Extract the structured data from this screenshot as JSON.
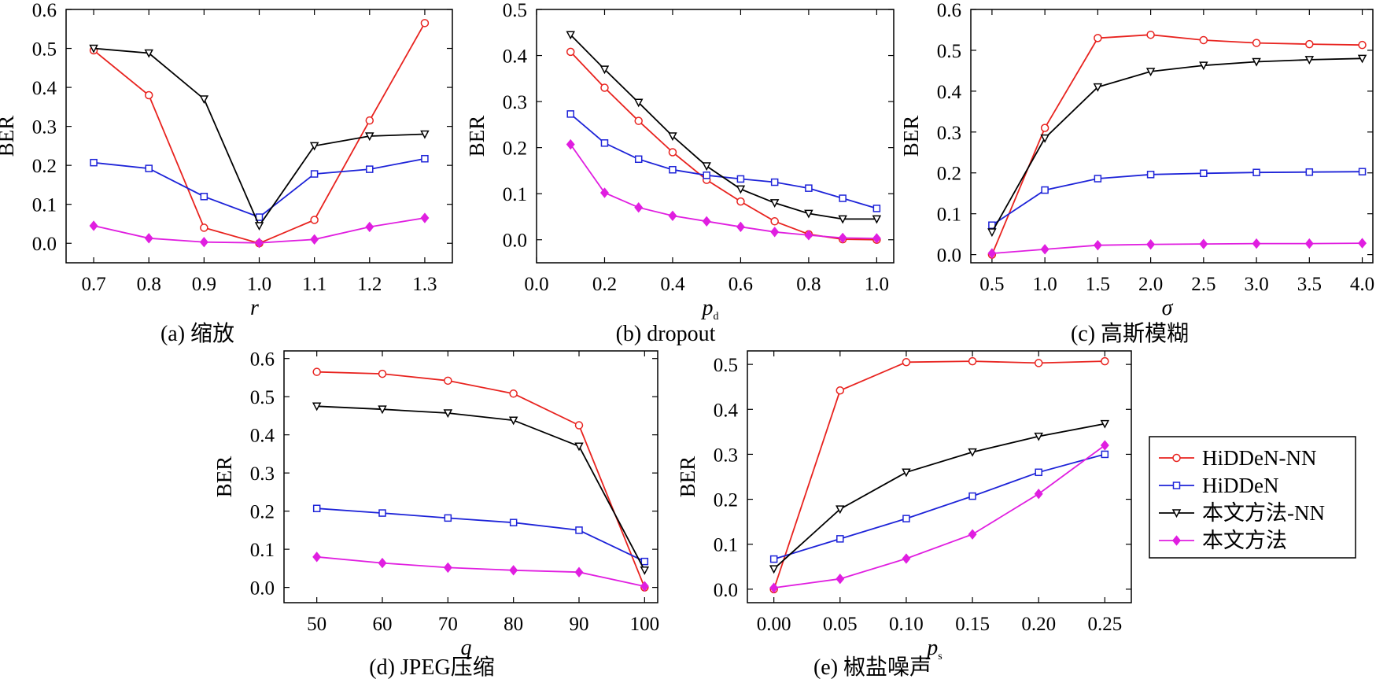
{
  "legend": [
    {
      "name": "HiDDeN-NN",
      "color": "#e8231f",
      "marker": "circle"
    },
    {
      "name": "HiDDeN",
      "color": "#1d23d8",
      "marker": "square"
    },
    {
      "name": "本文方法-NN",
      "color": "#000000",
      "marker": "triangle-down"
    },
    {
      "name": "本文方法",
      "color": "#e01ee0",
      "marker": "diamond"
    }
  ],
  "chart_data": [
    {
      "type": "line",
      "caption": "(a) 缩放",
      "xlabel": "r",
      "xlabel_sub": "",
      "ylabel": "BER",
      "x": [
        0.7,
        0.8,
        0.9,
        1.0,
        1.1,
        1.2,
        1.3
      ],
      "xticks": [
        "0.7",
        "0.8",
        "0.9",
        "1.0",
        "1.1",
        "1.2",
        "1.3"
      ],
      "xlim": [
        0.65,
        1.35
      ],
      "yticks": [
        "0.0",
        "0.1",
        "0.2",
        "0.3",
        "0.4",
        "0.5",
        "0.6"
      ],
      "ylim": [
        -0.05,
        0.6
      ],
      "series": [
        {
          "name": "HiDDeN-NN",
          "values": [
            0.495,
            0.38,
            0.04,
            0.0,
            0.06,
            0.315,
            0.565
          ]
        },
        {
          "name": "HiDDeN",
          "values": [
            0.207,
            0.192,
            0.12,
            0.067,
            0.178,
            0.19,
            0.217
          ]
        },
        {
          "name": "本文方法-NN",
          "values": [
            0.5,
            0.488,
            0.37,
            0.045,
            0.25,
            0.275,
            0.28
          ]
        },
        {
          "name": "本文方法",
          "values": [
            0.045,
            0.013,
            0.003,
            0.001,
            0.01,
            0.042,
            0.065
          ]
        }
      ]
    },
    {
      "type": "line",
      "caption": "(b) dropout",
      "xlabel": "p",
      "xlabel_sub": "d",
      "ylabel": "BER",
      "x": [
        0.1,
        0.2,
        0.3,
        0.4,
        0.5,
        0.6,
        0.7,
        0.8,
        0.9,
        1.0
      ],
      "xticks": [
        "0.0",
        "0.2",
        "0.4",
        "0.6",
        "0.8",
        "1.0"
      ],
      "xlim": [
        0.0,
        1.05
      ],
      "yticks": [
        "0.0",
        "0.1",
        "0.2",
        "0.3",
        "0.4",
        "0.5"
      ],
      "ylim": [
        -0.05,
        0.5
      ],
      "series": [
        {
          "name": "HiDDeN-NN",
          "values": [
            0.408,
            0.33,
            0.258,
            0.19,
            0.13,
            0.083,
            0.04,
            0.012,
            0.001,
            0.0
          ]
        },
        {
          "name": "HiDDeN",
          "values": [
            0.273,
            0.21,
            0.175,
            0.152,
            0.14,
            0.132,
            0.125,
            0.112,
            0.09,
            0.068
          ]
        },
        {
          "name": "本文方法-NN",
          "values": [
            0.445,
            0.37,
            0.298,
            0.225,
            0.16,
            0.11,
            0.08,
            0.057,
            0.045,
            0.045
          ]
        },
        {
          "name": "本文方法",
          "values": [
            0.207,
            0.102,
            0.07,
            0.052,
            0.04,
            0.028,
            0.017,
            0.01,
            0.004,
            0.003
          ]
        }
      ]
    },
    {
      "type": "line",
      "caption": "(c) 高斯模糊",
      "xlabel": "σ",
      "xlabel_sub": "",
      "ylabel": "BER",
      "x": [
        0.5,
        1.0,
        1.5,
        2.0,
        2.5,
        3.0,
        3.5,
        4.0
      ],
      "xticks": [
        "0.5",
        "1.0",
        "1.5",
        "2.0",
        "2.5",
        "3.0",
        "3.5",
        "4.0"
      ],
      "xlim": [
        0.3,
        4.1
      ],
      "yticks": [
        "0.0",
        "0.1",
        "0.2",
        "0.3",
        "0.4",
        "0.5",
        "0.6"
      ],
      "ylim": [
        -0.02,
        0.6
      ],
      "series": [
        {
          "name": "HiDDeN-NN",
          "values": [
            0.0,
            0.31,
            0.53,
            0.538,
            0.525,
            0.518,
            0.515,
            0.513
          ]
        },
        {
          "name": "HiDDeN",
          "values": [
            0.072,
            0.158,
            0.186,
            0.196,
            0.199,
            0.201,
            0.202,
            0.203
          ]
        },
        {
          "name": "本文方法-NN",
          "values": [
            0.055,
            0.285,
            0.41,
            0.448,
            0.463,
            0.472,
            0.477,
            0.48
          ]
        },
        {
          "name": "本文方法",
          "values": [
            0.003,
            0.013,
            0.023,
            0.025,
            0.026,
            0.027,
            0.027,
            0.028
          ]
        }
      ]
    },
    {
      "type": "line",
      "caption": "(d) JPEG压缩",
      "xlabel": "q",
      "xlabel_sub": "",
      "ylabel": "BER",
      "x": [
        50,
        60,
        70,
        80,
        90,
        100
      ],
      "xticks": [
        "50",
        "60",
        "70",
        "80",
        "90",
        "100"
      ],
      "xlim": [
        45,
        102
      ],
      "yticks": [
        "0.0",
        "0.1",
        "0.2",
        "0.3",
        "0.4",
        "0.5",
        "0.6"
      ],
      "ylim": [
        -0.04,
        0.62
      ],
      "series": [
        {
          "name": "HiDDeN-NN",
          "values": [
            0.565,
            0.56,
            0.542,
            0.508,
            0.425,
            0.0
          ]
        },
        {
          "name": "HiDDeN",
          "values": [
            0.207,
            0.195,
            0.182,
            0.17,
            0.15,
            0.068
          ]
        },
        {
          "name": "本文方法-NN",
          "values": [
            0.475,
            0.467,
            0.457,
            0.438,
            0.37,
            0.045
          ]
        },
        {
          "name": "本文方法",
          "values": [
            0.08,
            0.064,
            0.052,
            0.045,
            0.04,
            0.003
          ]
        }
      ]
    },
    {
      "type": "line",
      "caption": "(e) 椒盐噪声",
      "xlabel": "p",
      "xlabel_sub": "s",
      "ylabel": "BER",
      "x": [
        0.0,
        0.05,
        0.1,
        0.15,
        0.2,
        0.25
      ],
      "xticks": [
        "0.00",
        "0.05",
        "0.10",
        "0.15",
        "0.20",
        "0.25"
      ],
      "xlim": [
        -0.02,
        0.27
      ],
      "yticks": [
        "0.0",
        "0.1",
        "0.2",
        "0.3",
        "0.4",
        "0.5"
      ],
      "ylim": [
        -0.03,
        0.53
      ],
      "series": [
        {
          "name": "HiDDeN-NN",
          "values": [
            0.0,
            0.442,
            0.505,
            0.507,
            0.503,
            0.507
          ]
        },
        {
          "name": "HiDDeN",
          "values": [
            0.067,
            0.112,
            0.157,
            0.207,
            0.26,
            0.3
          ]
        },
        {
          "name": "本文方法-NN",
          "values": [
            0.045,
            0.178,
            0.26,
            0.305,
            0.34,
            0.368
          ]
        },
        {
          "name": "本文方法",
          "values": [
            0.003,
            0.023,
            0.068,
            0.122,
            0.212,
            0.32
          ]
        }
      ]
    }
  ]
}
